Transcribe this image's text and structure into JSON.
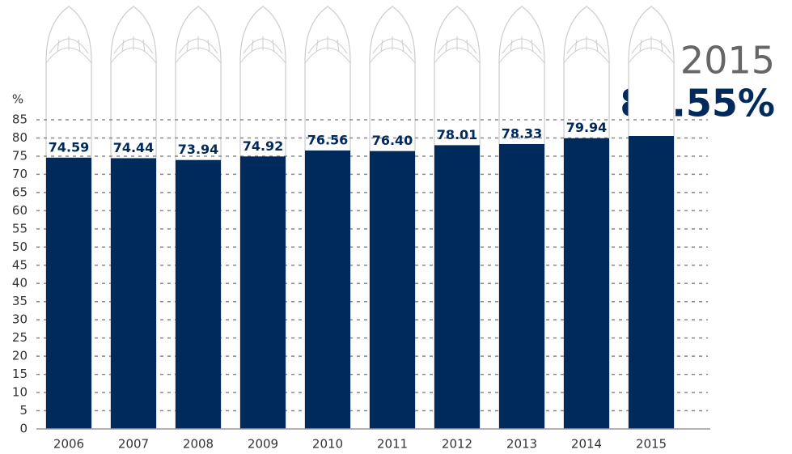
{
  "chart_data": {
    "type": "bar",
    "ylabel": "%",
    "categories": [
      "2006",
      "2007",
      "2008",
      "2009",
      "2010",
      "2011",
      "2012",
      "2013",
      "2014",
      "2015"
    ],
    "values": [
      74.59,
      74.44,
      73.94,
      74.92,
      76.56,
      76.4,
      78.01,
      78.33,
      79.94,
      80.55
    ],
    "value_labels": [
      "74.59",
      "74.44",
      "73.94",
      "74.92",
      "76.56",
      "76.40",
      "78.01",
      "78.33",
      "79.94",
      "80.55%"
    ],
    "color": "#002a5c",
    "ylim": [
      0,
      85
    ],
    "yticks": [
      0,
      5,
      10,
      15,
      20,
      25,
      30,
      35,
      40,
      45,
      50,
      55,
      60,
      65,
      70,
      75,
      80,
      85
    ],
    "grid": true
  }
}
